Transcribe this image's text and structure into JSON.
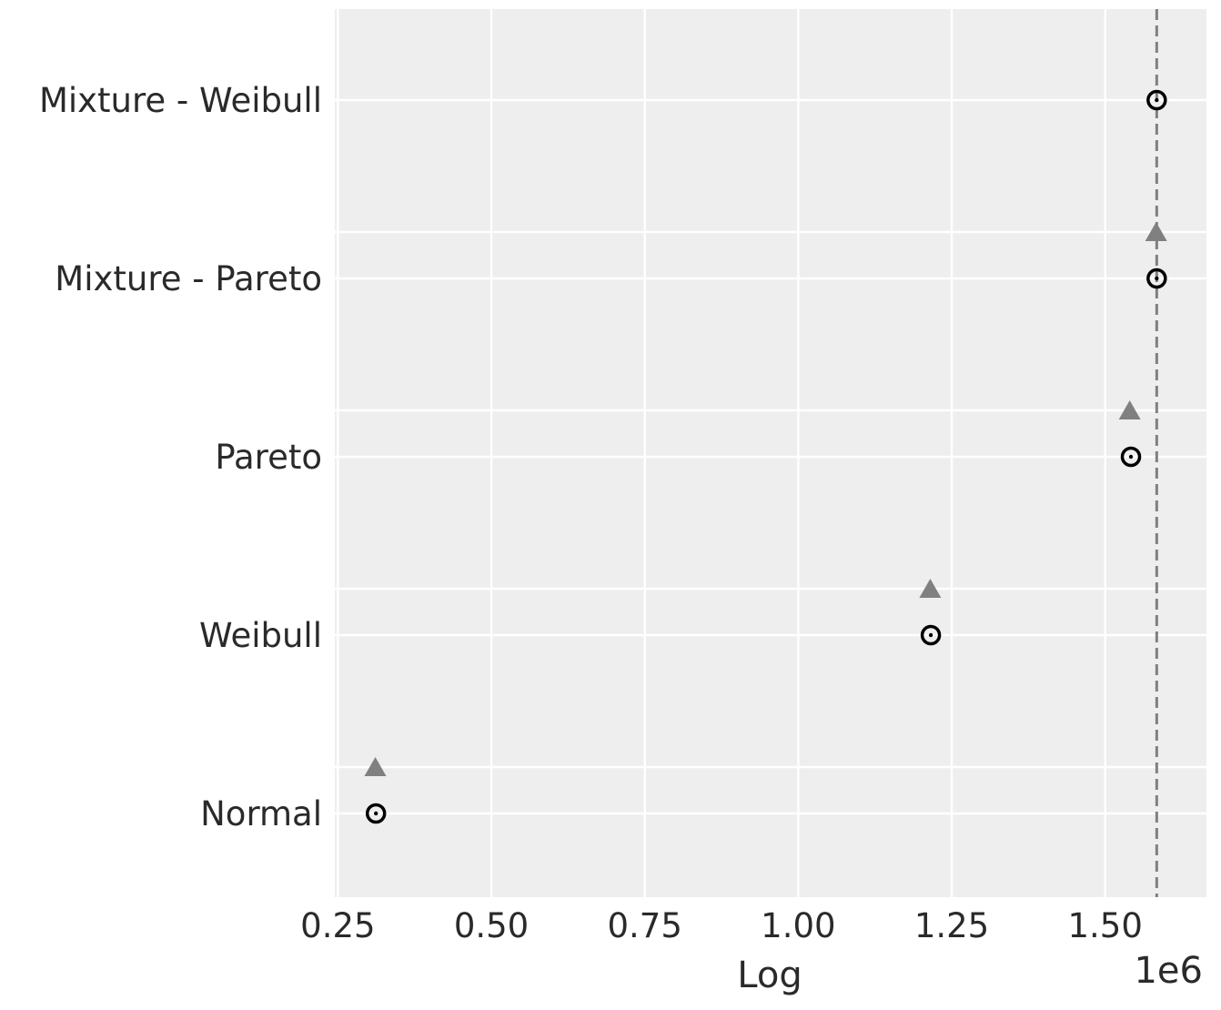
{
  "chart_data": {
    "type": "scatter",
    "title": "",
    "xlabel": "Log",
    "ylabel": "",
    "x_offset_label": "1e6",
    "xlim": [
      0.245,
      1.665
    ],
    "xticks": [
      0.25,
      0.5,
      0.75,
      1.0,
      1.25,
      1.5
    ],
    "xtick_labels": [
      "0.25",
      "0.50",
      "0.75",
      "1.00",
      "1.25",
      "1.50"
    ],
    "categories": [
      "Mixture - Weibull",
      "Mixture - Pareto",
      "Pareto",
      "Weibull",
      "Normal"
    ],
    "grid": true,
    "reference_line": {
      "x": 1.584,
      "style": "dashed",
      "color": "#808080"
    },
    "series": [
      {
        "marker": "circle",
        "color": "#000000",
        "values": [
          1.584,
          1.584,
          1.542,
          1.216,
          0.312
        ]
      },
      {
        "marker": "triangle",
        "color": "#808080",
        "values": [
          null,
          1.583,
          1.54,
          1.215,
          0.311
        ]
      }
    ]
  }
}
